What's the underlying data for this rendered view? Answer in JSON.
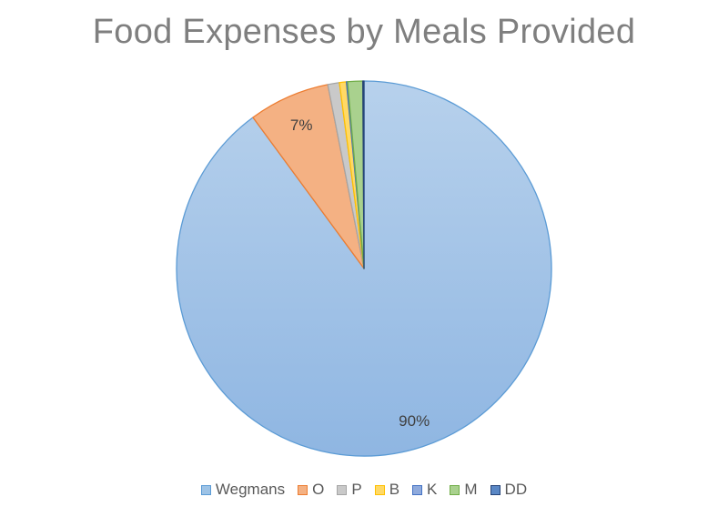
{
  "chart_data": {
    "type": "pie",
    "title": "Food Expenses by Meals Provided",
    "categories": [
      "Wegmans",
      "O",
      "P",
      "B",
      "K",
      "M",
      "DD"
    ],
    "values": [
      90,
      7,
      1,
      0.6,
      0.1,
      1.3,
      0.1
    ],
    "data_labels": [
      "90%",
      "7%",
      "",
      "",
      "",
      "",
      ""
    ],
    "colors": [
      "#9dc3e6",
      "#f4b183",
      "#c9c9c9",
      "#ffd966",
      "#8faadc",
      "#a9d18e",
      "#5a87c5"
    ],
    "borders": [
      "#5b9bd5",
      "#ed7d31",
      "#a5a5a5",
      "#ffc000",
      "#4472c4",
      "#70ad47",
      "#264478"
    ],
    "legend": "bottom"
  }
}
